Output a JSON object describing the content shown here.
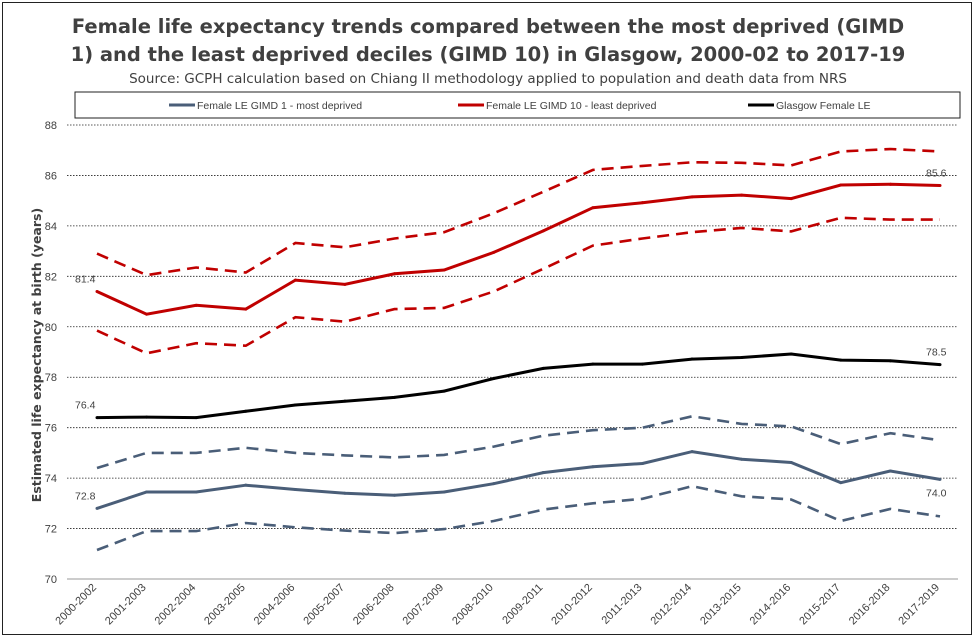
{
  "chart_data": {
    "type": "line",
    "title_line1": "Female life expectancy trends compared between the most deprived (GIMD",
    "title_line2": "1) and the least deprived deciles (GIMD 10) in Glasgow, 2000-02 to 2017-19",
    "subtitle": "Source: GCPH calculation based on Chiang II methodology applied to population and death data from NRS",
    "ylabel": "Estimated life expectancy at birth (years)",
    "ylim": [
      70,
      88
    ],
    "yticks": [
      70,
      72,
      74,
      76,
      78,
      80,
      82,
      84,
      86,
      88
    ],
    "grid": true,
    "legend_position": "top",
    "categories": [
      "2000-2002",
      "2001-2003",
      "2002-2004",
      "2003-2005",
      "2004-2006",
      "2005-2007",
      "2006-2008",
      "2007-2009",
      "2008-2010",
      "2009-2011",
      "2010-2012",
      "2011-2013",
      "2012-2014",
      "2013-2015",
      "2014-2016",
      "2015-2017",
      "2016-2018",
      "2017-2019"
    ],
    "series": [
      {
        "key": "gimd1",
        "name": "Female LE GIMD 1 - most deprived",
        "color": "#4a5e78",
        "values": [
          72.8,
          73.45,
          73.45,
          73.72,
          73.55,
          73.4,
          73.32,
          73.45,
          73.78,
          74.22,
          74.45,
          74.58,
          75.05,
          74.75,
          74.62,
          73.82,
          74.28,
          73.95
        ],
        "ci_upper": [
          74.4,
          75.0,
          75.0,
          75.2,
          75.0,
          74.9,
          74.82,
          74.92,
          75.25,
          75.68,
          75.9,
          76.0,
          76.45,
          76.15,
          76.05,
          75.35,
          75.78,
          75.5
        ],
        "ci_lower": [
          71.15,
          71.9,
          71.9,
          72.22,
          72.05,
          71.92,
          71.82,
          71.98,
          72.3,
          72.75,
          73.0,
          73.18,
          73.68,
          73.28,
          73.15,
          72.3,
          72.78,
          72.48
        ],
        "start_label": "72.8",
        "end_label": "74.0"
      },
      {
        "key": "gimd10",
        "name": "Female LE GIMD 10 - least deprived",
        "color": "#c00000",
        "values": [
          81.4,
          80.5,
          80.85,
          80.7,
          81.85,
          81.68,
          82.1,
          82.25,
          82.95,
          83.8,
          84.72,
          84.92,
          85.15,
          85.22,
          85.08,
          85.62,
          85.65,
          85.6
        ],
        "ci_upper": [
          82.9,
          82.05,
          82.35,
          82.15,
          83.32,
          83.15,
          83.5,
          83.75,
          84.5,
          85.35,
          86.22,
          86.38,
          86.52,
          86.5,
          86.4,
          86.95,
          87.05,
          86.95
        ],
        "ci_lower": [
          79.85,
          78.95,
          79.35,
          79.25,
          80.38,
          80.2,
          80.7,
          80.75,
          81.4,
          82.3,
          83.22,
          83.5,
          83.75,
          83.92,
          83.78,
          84.32,
          84.25,
          84.25
        ],
        "start_label": "81.4",
        "end_label": "85.6"
      },
      {
        "key": "glasgow",
        "name": "Glasgow Female LE",
        "color": "#000000",
        "values": [
          76.4,
          76.42,
          76.4,
          76.65,
          76.9,
          77.05,
          77.2,
          77.45,
          77.95,
          78.35,
          78.52,
          78.52,
          78.72,
          78.78,
          78.92,
          78.68,
          78.65,
          78.5
        ],
        "start_label": "76.4",
        "end_label": "78.5"
      }
    ]
  }
}
